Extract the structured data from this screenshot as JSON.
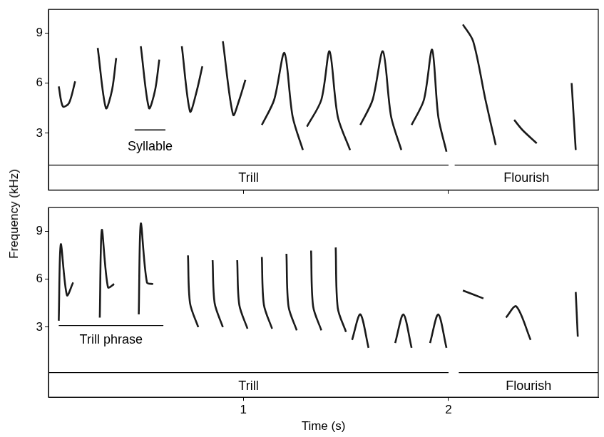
{
  "ylabel": "Frequency (kHz)",
  "chart_data": [
    {
      "type": "line",
      "xlim": [
        0.05,
        2.73
      ],
      "ylim": [
        -0.4,
        10.4
      ],
      "xticks": [
        1,
        2
      ],
      "yticks": [
        3,
        6,
        9
      ],
      "tick_labels": "y",
      "series": [
        {
          "color": "#1a1a1a",
          "x": [
            0.1,
            0.12,
            0.15,
            0.18,
            null,
            0.29,
            0.33,
            0.36,
            0.38,
            null,
            0.5,
            0.54,
            0.57,
            0.59,
            null,
            0.7,
            0.74,
            0.77,
            0.8,
            null,
            0.9,
            0.95,
            0.98,
            1.01,
            null,
            1.09,
            1.15,
            1.2,
            1.24,
            1.29,
            null,
            1.31,
            1.38,
            1.42,
            1.46,
            1.52,
            null,
            1.57,
            1.63,
            1.68,
            1.72,
            1.77,
            null,
            1.82,
            1.88,
            1.92,
            1.95,
            1.99,
            null,
            2.07,
            2.12,
            2.18,
            2.23,
            null,
            2.32,
            2.36,
            2.43,
            null,
            2.6,
            2.62
          ],
          "values": [
            5.8,
            4.6,
            4.8,
            6.1,
            null,
            8.1,
            4.5,
            5.6,
            7.5,
            null,
            8.2,
            4.5,
            5.6,
            7.4,
            null,
            8.2,
            4.3,
            5.4,
            7.0,
            null,
            8.5,
            4.1,
            5.0,
            6.2,
            null,
            3.5,
            5.0,
            7.8,
            4.0,
            2.0,
            null,
            3.4,
            5.0,
            7.9,
            4.0,
            2.0,
            null,
            3.5,
            5.0,
            7.9,
            4.0,
            2.0,
            null,
            3.5,
            5.0,
            8.0,
            4.0,
            1.9,
            null,
            9.5,
            8.5,
            5.0,
            2.3,
            null,
            3.8,
            3.2,
            2.4,
            null,
            6.0,
            2.0
          ]
        }
      ],
      "annotations": [
        {
          "text": "Syllable",
          "x": [
            0.47,
            0.62
          ],
          "y": 3.2,
          "text_y": 2.2
        },
        {
          "text": "Trill",
          "x": [
            0.05,
            2.0
          ],
          "y": 1.1,
          "text_y": 0.3
        },
        {
          "text": "Flourish",
          "x": [
            2.03,
            2.73
          ],
          "y": 1.1,
          "text_y": 0.3
        }
      ]
    },
    {
      "type": "line",
      "xlim": [
        0.05,
        2.73
      ],
      "ylim": [
        -1.4,
        10.5
      ],
      "xticks": [
        1,
        2
      ],
      "yticks": [
        3,
        6,
        9
      ],
      "xlabel": "Time (s)",
      "series": [
        {
          "color": "#1a1a1a",
          "x": [
            0.1,
            0.11,
            0.14,
            0.17,
            null,
            0.3,
            0.31,
            0.34,
            0.37,
            null,
            0.49,
            0.5,
            0.53,
            0.56,
            null,
            0.73,
            0.74,
            0.78,
            null,
            0.85,
            0.86,
            0.9,
            null,
            0.97,
            0.98,
            1.02,
            null,
            1.09,
            1.1,
            1.14,
            null,
            1.21,
            1.22,
            1.26,
            null,
            1.33,
            1.34,
            1.38,
            null,
            1.45,
            1.46,
            1.5,
            null,
            1.53,
            1.57,
            1.61,
            null,
            1.74,
            1.78,
            1.82,
            null,
            1.91,
            1.95,
            1.99,
            null,
            2.07,
            2.17,
            null,
            2.28,
            2.33,
            2.4,
            null,
            2.62,
            2.63
          ],
          "values": [
            3.4,
            8.2,
            5.0,
            5.8,
            null,
            3.6,
            9.1,
            5.5,
            5.7,
            null,
            3.8,
            9.5,
            5.8,
            5.7,
            null,
            7.5,
            4.5,
            3.0,
            null,
            7.2,
            4.5,
            3.0,
            null,
            7.2,
            4.4,
            2.9,
            null,
            7.4,
            4.4,
            2.9,
            null,
            7.6,
            4.3,
            2.8,
            null,
            7.8,
            4.3,
            2.8,
            null,
            8.0,
            4.2,
            2.7,
            null,
            2.2,
            3.8,
            1.7,
            null,
            2.0,
            3.8,
            1.7,
            null,
            2.0,
            3.8,
            1.7,
            null,
            5.3,
            4.8,
            null,
            3.6,
            4.3,
            2.2,
            null,
            5.2,
            2.4
          ]
        }
      ],
      "annotations": [
        {
          "text": "Trill phrase",
          "x": [
            0.1,
            0.61
          ],
          "y": 3.1,
          "text_y": 2.2
        },
        {
          "text": "Trill",
          "x": [
            0.05,
            2.0
          ],
          "y": 0.15,
          "text_y": -0.7
        },
        {
          "text": "Flourish",
          "x": [
            2.05,
            2.73
          ],
          "y": 0.15,
          "text_y": -0.7
        }
      ]
    }
  ]
}
